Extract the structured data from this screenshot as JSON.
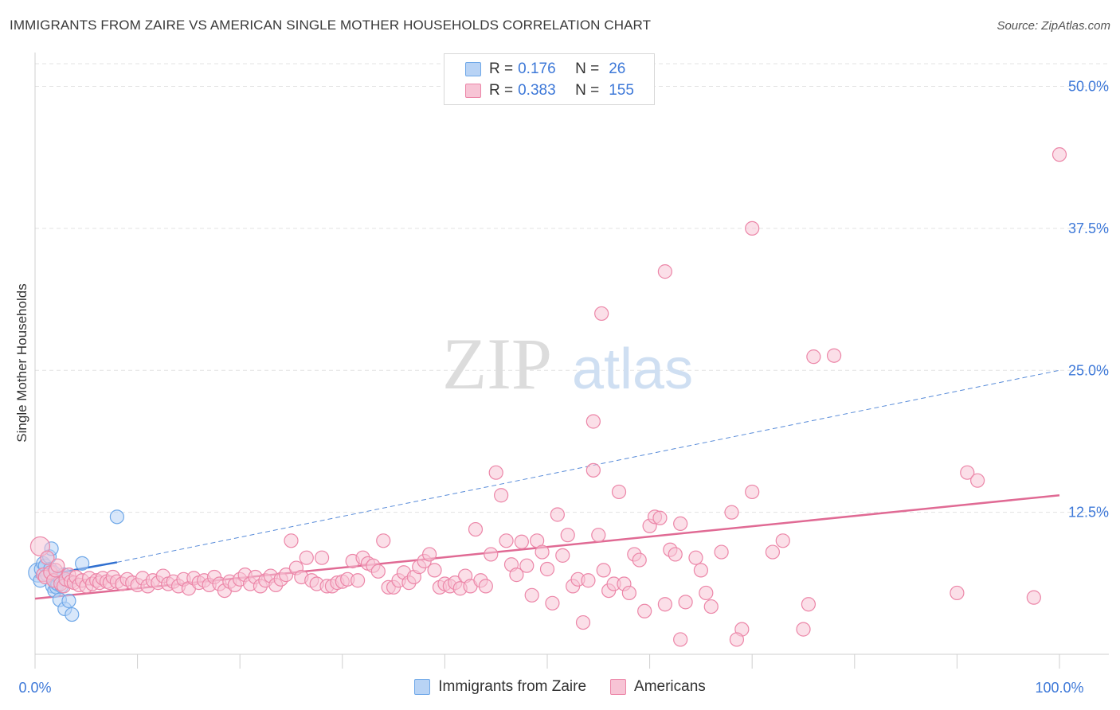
{
  "title": "IMMIGRANTS FROM ZAIRE VS AMERICAN SINGLE MOTHER HOUSEHOLDS CORRELATION CHART",
  "source": "Source: ZipAtlas.com",
  "watermark": {
    "zip": "ZIP",
    "atlas": "atlas"
  },
  "colors": {
    "blue": "#6fa8e8",
    "blue_fill": "#b8d3f5",
    "blue_line": "#2f6fd0",
    "pink": "#ec86a8",
    "pink_fill": "#f7c4d5",
    "pink_line": "#e06a94",
    "axis_text": "#3d78d8",
    "grid": "#e3e3e3"
  },
  "legend": {
    "rows": [
      {
        "r_label": "R =",
        "r_value": "0.176",
        "n_label": "N =",
        "n_value": "26"
      },
      {
        "r_label": "R =",
        "r_value": "0.383",
        "n_label": "N =",
        "n_value": "155"
      }
    ]
  },
  "bottom_legend": [
    "Immigrants from Zaire",
    "Americans"
  ],
  "chart_data": {
    "type": "scatter",
    "title": "IMMIGRANTS FROM ZAIRE VS AMERICAN SINGLE MOTHER HOUSEHOLDS CORRELATION CHART",
    "xlabel": "",
    "ylabel": "Single Mother Households",
    "xlim": [
      0,
      100
    ],
    "ylim": [
      0,
      52
    ],
    "x_tick_labels": [
      "0.0%",
      "100.0%"
    ],
    "y_ticks": [
      12.5,
      25.0,
      37.5,
      50.0
    ],
    "y_tick_labels": [
      "12.5%",
      "25.0%",
      "37.5%",
      "50.0%"
    ],
    "grid": true,
    "legend_placement": "top-center",
    "series": [
      {
        "name": "Immigrants from Zaire",
        "color": "blue",
        "points": [
          [
            0.3,
            7.2
          ],
          [
            0.5,
            6.5
          ],
          [
            0.6,
            7.5
          ],
          [
            0.8,
            8.0
          ],
          [
            1.0,
            7.8
          ],
          [
            1.2,
            7.0
          ],
          [
            1.4,
            8.6
          ],
          [
            1.5,
            7.5
          ],
          [
            1.6,
            9.3
          ],
          [
            1.7,
            6.0
          ],
          [
            1.8,
            7.2
          ],
          [
            1.9,
            5.6
          ],
          [
            2.0,
            6.3
          ],
          [
            2.1,
            5.9
          ],
          [
            2.2,
            6.2
          ],
          [
            2.3,
            6.8
          ],
          [
            2.4,
            4.8
          ],
          [
            2.5,
            6.6
          ],
          [
            2.6,
            6.0
          ],
          [
            2.8,
            7.0
          ],
          [
            2.9,
            4.0
          ],
          [
            3.2,
            6.5
          ],
          [
            3.3,
            4.7
          ],
          [
            3.6,
            3.5
          ],
          [
            4.6,
            8.0
          ],
          [
            8.0,
            12.1
          ]
        ],
        "trend": {
          "x": [
            0,
            8.0
          ],
          "y": [
            6.8,
            8.1
          ],
          "extended_to": [
            100,
            25.0
          ]
        }
      },
      {
        "name": "Americans",
        "color": "pink",
        "points": [
          [
            0.5,
            9.5
          ],
          [
            0.8,
            7.0
          ],
          [
            1.0,
            6.8
          ],
          [
            1.2,
            8.5
          ],
          [
            1.5,
            7.2
          ],
          [
            1.8,
            6.5
          ],
          [
            2.0,
            7.4
          ],
          [
            2.2,
            7.8
          ],
          [
            2.5,
            6.2
          ],
          [
            2.8,
            6.0
          ],
          [
            3.0,
            6.6
          ],
          [
            3.3,
            7.0
          ],
          [
            3.5,
            6.4
          ],
          [
            3.8,
            6.3
          ],
          [
            4.0,
            6.8
          ],
          [
            4.3,
            6.1
          ],
          [
            4.6,
            6.5
          ],
          [
            5.0,
            6.0
          ],
          [
            5.3,
            6.7
          ],
          [
            5.6,
            6.2
          ],
          [
            6.0,
            6.5
          ],
          [
            6.3,
            6.3
          ],
          [
            6.6,
            6.7
          ],
          [
            7.0,
            6.4
          ],
          [
            7.3,
            6.3
          ],
          [
            7.6,
            6.8
          ],
          [
            8.0,
            6.4
          ],
          [
            8.5,
            6.2
          ],
          [
            9.0,
            6.6
          ],
          [
            9.5,
            6.3
          ],
          [
            10.0,
            6.1
          ],
          [
            10.5,
            6.7
          ],
          [
            11.0,
            6.0
          ],
          [
            11.5,
            6.5
          ],
          [
            12.0,
            6.3
          ],
          [
            12.5,
            6.9
          ],
          [
            13.0,
            6.2
          ],
          [
            13.5,
            6.4
          ],
          [
            14.0,
            6.0
          ],
          [
            14.5,
            6.6
          ],
          [
            15.0,
            5.8
          ],
          [
            15.5,
            6.7
          ],
          [
            16.0,
            6.3
          ],
          [
            16.5,
            6.5
          ],
          [
            17.0,
            6.1
          ],
          [
            17.5,
            6.8
          ],
          [
            18.0,
            6.2
          ],
          [
            18.5,
            5.6
          ],
          [
            19.0,
            6.4
          ],
          [
            19.5,
            6.1
          ],
          [
            20.0,
            6.6
          ],
          [
            20.5,
            7.0
          ],
          [
            21.0,
            6.2
          ],
          [
            21.5,
            6.8
          ],
          [
            22.0,
            6.0
          ],
          [
            22.5,
            6.5
          ],
          [
            23.0,
            6.9
          ],
          [
            23.5,
            6.1
          ],
          [
            24.0,
            6.6
          ],
          [
            24.5,
            7.0
          ],
          [
            25.0,
            10.0
          ],
          [
            25.5,
            7.6
          ],
          [
            26.0,
            6.8
          ],
          [
            26.5,
            8.5
          ],
          [
            27.0,
            6.5
          ],
          [
            27.5,
            6.2
          ],
          [
            28.0,
            8.5
          ],
          [
            28.5,
            6.0
          ],
          [
            29.0,
            6.0
          ],
          [
            29.5,
            6.3
          ],
          [
            30.0,
            6.4
          ],
          [
            30.5,
            6.6
          ],
          [
            31.0,
            8.2
          ],
          [
            31.5,
            6.5
          ],
          [
            32.0,
            8.5
          ],
          [
            32.5,
            8.0
          ],
          [
            33.0,
            7.8
          ],
          [
            33.5,
            7.3
          ],
          [
            34.0,
            10.0
          ],
          [
            34.5,
            5.9
          ],
          [
            35.0,
            5.9
          ],
          [
            35.5,
            6.5
          ],
          [
            36.0,
            7.2
          ],
          [
            36.5,
            6.3
          ],
          [
            37.0,
            6.8
          ],
          [
            37.5,
            7.7
          ],
          [
            38.0,
            8.2
          ],
          [
            38.5,
            8.8
          ],
          [
            39.0,
            7.4
          ],
          [
            39.5,
            5.9
          ],
          [
            40.0,
            6.2
          ],
          [
            40.5,
            6.0
          ],
          [
            41.0,
            6.3
          ],
          [
            41.5,
            5.8
          ],
          [
            42.0,
            6.9
          ],
          [
            42.5,
            6.0
          ],
          [
            43.0,
            11.0
          ],
          [
            43.5,
            6.5
          ],
          [
            44.0,
            6.0
          ],
          [
            44.5,
            8.8
          ],
          [
            45.0,
            16.0
          ],
          [
            45.5,
            14.0
          ],
          [
            46.0,
            10.0
          ],
          [
            46.5,
            7.9
          ],
          [
            47.0,
            7.0
          ],
          [
            47.5,
            9.9
          ],
          [
            48.0,
            7.8
          ],
          [
            48.5,
            5.2
          ],
          [
            49.0,
            10.0
          ],
          [
            49.5,
            9.0
          ],
          [
            50.0,
            7.5
          ],
          [
            50.5,
            4.5
          ],
          [
            51.0,
            12.3
          ],
          [
            51.5,
            8.7
          ],
          [
            52.0,
            10.5
          ],
          [
            52.5,
            6.0
          ],
          [
            53.0,
            6.6
          ],
          [
            53.5,
            2.8
          ],
          [
            54.0,
            6.5
          ],
          [
            54.5,
            16.2
          ],
          [
            55.0,
            10.5
          ],
          [
            55.5,
            7.4
          ],
          [
            56.0,
            5.6
          ],
          [
            56.5,
            6.2
          ],
          [
            57.0,
            14.3
          ],
          [
            57.5,
            6.2
          ],
          [
            58.0,
            5.4
          ],
          [
            58.5,
            8.8
          ],
          [
            59.0,
            8.3
          ],
          [
            59.5,
            3.8
          ],
          [
            60.0,
            11.3
          ],
          [
            60.5,
            12.1
          ],
          [
            61.0,
            12.0
          ],
          [
            61.5,
            4.4
          ],
          [
            62.0,
            9.2
          ],
          [
            62.5,
            8.8
          ],
          [
            63.0,
            11.5
          ],
          [
            63.5,
            4.6
          ],
          [
            64.5,
            8.5
          ],
          [
            65.0,
            7.4
          ],
          [
            65.5,
            5.4
          ],
          [
            66.0,
            4.2
          ],
          [
            67.0,
            9.0
          ],
          [
            68.0,
            12.5
          ],
          [
            69.0,
            2.2
          ],
          [
            70.0,
            14.3
          ],
          [
            72.0,
            9.0
          ],
          [
            73.0,
            10.0
          ],
          [
            55.3,
            30.0
          ],
          [
            61.5,
            33.7
          ],
          [
            70.0,
            37.5
          ],
          [
            76.0,
            26.2
          ],
          [
            78.0,
            26.3
          ],
          [
            54.5,
            20.5
          ],
          [
            91.0,
            16.0
          ],
          [
            92.0,
            15.3
          ],
          [
            90.0,
            5.4
          ],
          [
            97.5,
            5.0
          ],
          [
            100.0,
            44.0
          ],
          [
            75.5,
            4.4
          ],
          [
            75.0,
            2.2
          ],
          [
            63.0,
            1.3
          ],
          [
            68.5,
            1.3
          ]
        ],
        "trend": {
          "x": [
            0,
            100
          ],
          "y": [
            4.9,
            14.0
          ]
        }
      }
    ]
  }
}
